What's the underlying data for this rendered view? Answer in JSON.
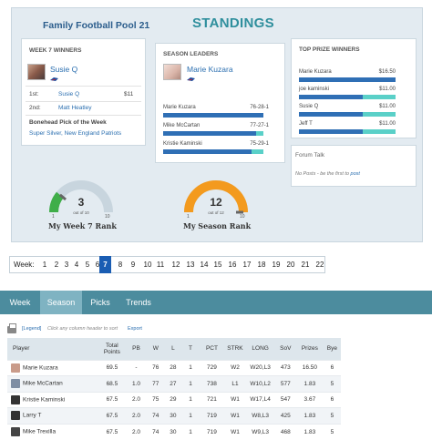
{
  "header": {
    "pool_title": "Family Football Pool 21",
    "standings": "STANDINGS"
  },
  "week_winners": {
    "title": "WEEK 7 WINNERS",
    "winner_name": "Susie Q",
    "rows": [
      {
        "place": "1st:",
        "name": "Susie Q",
        "amount": "$11"
      },
      {
        "place": "2nd:",
        "name": "Matt Heatley",
        "amount": ""
      }
    ],
    "bonehead_title": "Bonehead Pick of the Week",
    "bonehead_text": "Super Silver, New England Patriots"
  },
  "season_leaders": {
    "title": "SEASON LEADERS",
    "leader_name": "Marie Kuzara",
    "rows": [
      {
        "name": "Marie Kuzara",
        "record": "76-28-1",
        "fill": 1.0
      },
      {
        "name": "Mike McCartan",
        "record": "77-27-1",
        "fill": 0.93
      },
      {
        "name": "Kristie Kaminski",
        "record": "75-29-1",
        "fill": 0.88
      }
    ]
  },
  "prize_winners": {
    "title": "TOP PRIZE WINNERS",
    "rows": [
      {
        "name": "Marie Kuzara",
        "amount": "$16.50",
        "fill": 1.0
      },
      {
        "name": "joe kaminski",
        "amount": "$11.00",
        "fill": 0.66
      },
      {
        "name": "Susie Q",
        "amount": "$11.00",
        "fill": 0.66
      },
      {
        "name": "Jeff T",
        "amount": "$11.00",
        "fill": 0.66
      }
    ]
  },
  "forum": {
    "title": "Forum Talk",
    "text": "No Posts - be the first to ",
    "link": "post"
  },
  "gauges": [
    {
      "value": "3",
      "sub": "out of 10",
      "min": "1",
      "max": "10",
      "label": "My Week 7 Rank",
      "color": "#3fae49",
      "level": 0.22
    },
    {
      "value": "12",
      "sub": "out of 12",
      "min": "1",
      "max": "10",
      "label": "My Season Rank",
      "color": "#f39a1e",
      "level": 1.0
    }
  ],
  "weeks": {
    "label": "Week:",
    "items": [
      "1",
      "2",
      "3",
      "4",
      "5",
      "6",
      "7",
      "8",
      "9",
      "10",
      "11",
      "12",
      "13",
      "14",
      "15",
      "16",
      "17",
      "18",
      "19",
      "20",
      "21",
      "22"
    ],
    "active": "7"
  },
  "tabs": [
    {
      "label": "Week"
    },
    {
      "label": "Season"
    },
    {
      "label": "Picks"
    },
    {
      "label": "Trends"
    }
  ],
  "toolbar": {
    "legend": "[Legend]",
    "hint": "Click any column header to sort",
    "export": "Export"
  },
  "table": {
    "headers": [
      "Player",
      "Total Points",
      "PB",
      "W",
      "L",
      "T",
      "PCT",
      "STRK",
      "LONG",
      "SoV",
      "Prizes",
      "Bye"
    ],
    "rows": [
      [
        "Marie Kuzara",
        "69.5",
        "-",
        "76",
        "28",
        "1",
        "729",
        "W2",
        "W20,L3",
        "473",
        "16.50",
        "6"
      ],
      [
        "Mike McCartan",
        "68.5",
        "1.0",
        "77",
        "27",
        "1",
        "738",
        "L1",
        "W10,L2",
        "577",
        "1.83",
        "5"
      ],
      [
        "Kristie Kaminski",
        "67.5",
        "2.0",
        "75",
        "29",
        "1",
        "721",
        "W1",
        "W17,L4",
        "547",
        "3.67",
        "6"
      ],
      [
        "Larry T",
        "67.5",
        "2.0",
        "74",
        "30",
        "1",
        "719",
        "W1",
        "W8,L3",
        "425",
        "1.83",
        "5"
      ],
      [
        "Mike Trexilla",
        "67.5",
        "2.0",
        "74",
        "30",
        "1",
        "719",
        "W1",
        "W9,L3",
        "468",
        "1.83",
        "5"
      ]
    ]
  },
  "colors": {
    "accent": "#2f8f9d",
    "link": "#2b6fb0",
    "tab_bg": "#4c8c9e",
    "tab_active": "#7fb3c2",
    "week_active": "#1a5db3"
  }
}
